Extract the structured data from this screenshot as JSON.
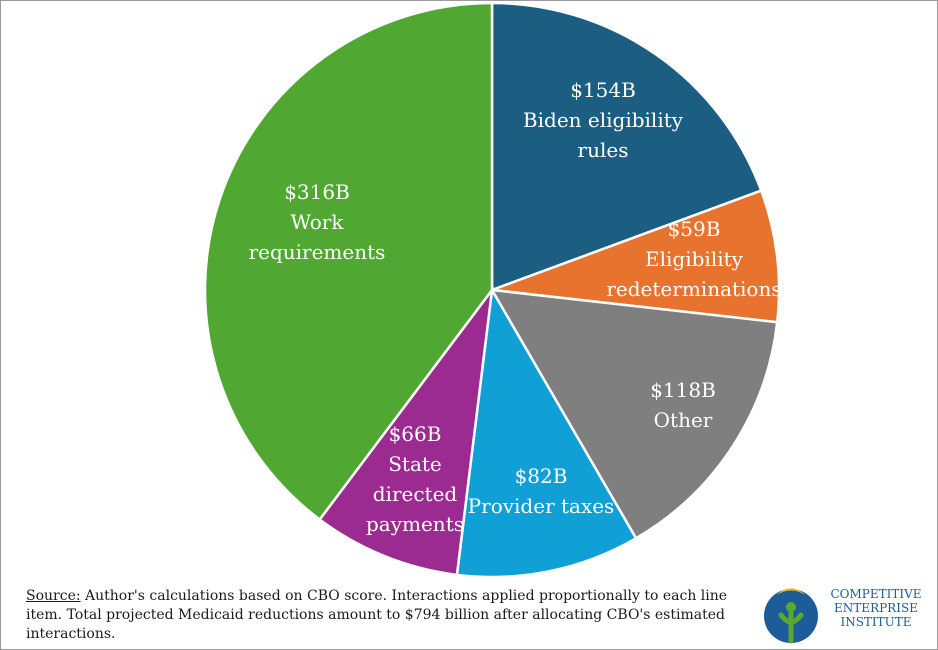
{
  "chart_data": {
    "type": "pie",
    "unit_prefix": "$",
    "unit_suffix": "B",
    "slices": [
      {
        "label": "Biden eligibility rules",
        "value": 154,
        "display": "$154B",
        "label_lines": [
          "$154B",
          "Biden eligibility",
          "rules"
        ],
        "color": "#1b5e82"
      },
      {
        "label": "Eligibility redeterminations",
        "value": 59,
        "display": "$59B",
        "label_lines": [
          "$59B",
          "Eligibility",
          "redeterminations"
        ],
        "color": "#e8732f"
      },
      {
        "label": "Other",
        "value": 118,
        "display": "$118B",
        "label_lines": [
          "$118B",
          "Other"
        ],
        "color": "#7f7f7f"
      },
      {
        "label": "Provider taxes",
        "value": 82,
        "display": "$82B",
        "label_lines": [
          "$82B",
          "Provider taxes"
        ],
        "color": "#10a0d6"
      },
      {
        "label": "State directed payments",
        "value": 66,
        "display": "$66B",
        "label_lines": [
          "$66B",
          "State",
          "directed",
          "payments"
        ],
        "color": "#9b2a91"
      },
      {
        "label": "Work requirements",
        "value": 316,
        "display": "$316B",
        "label_lines": [
          "$316B",
          "Work",
          "requirements"
        ],
        "color": "#50a832"
      }
    ],
    "start_angle": "12 o'clock",
    "direction": "clockwise",
    "legend": "none"
  },
  "source": {
    "prefix": "Source:",
    "text": " Author's calculations based on CBO score. Interactions applied proportionally to each line item. Total projected Medicaid reductions amount to $794 billion after allocating CBO's estimated interactions."
  },
  "logo": {
    "line1": "COMPETITIVE",
    "line2": "ENTERPRISE",
    "line3": "INSTITUTE",
    "colors": {
      "blue": "#1b5c99",
      "green": "#5aa832"
    }
  }
}
